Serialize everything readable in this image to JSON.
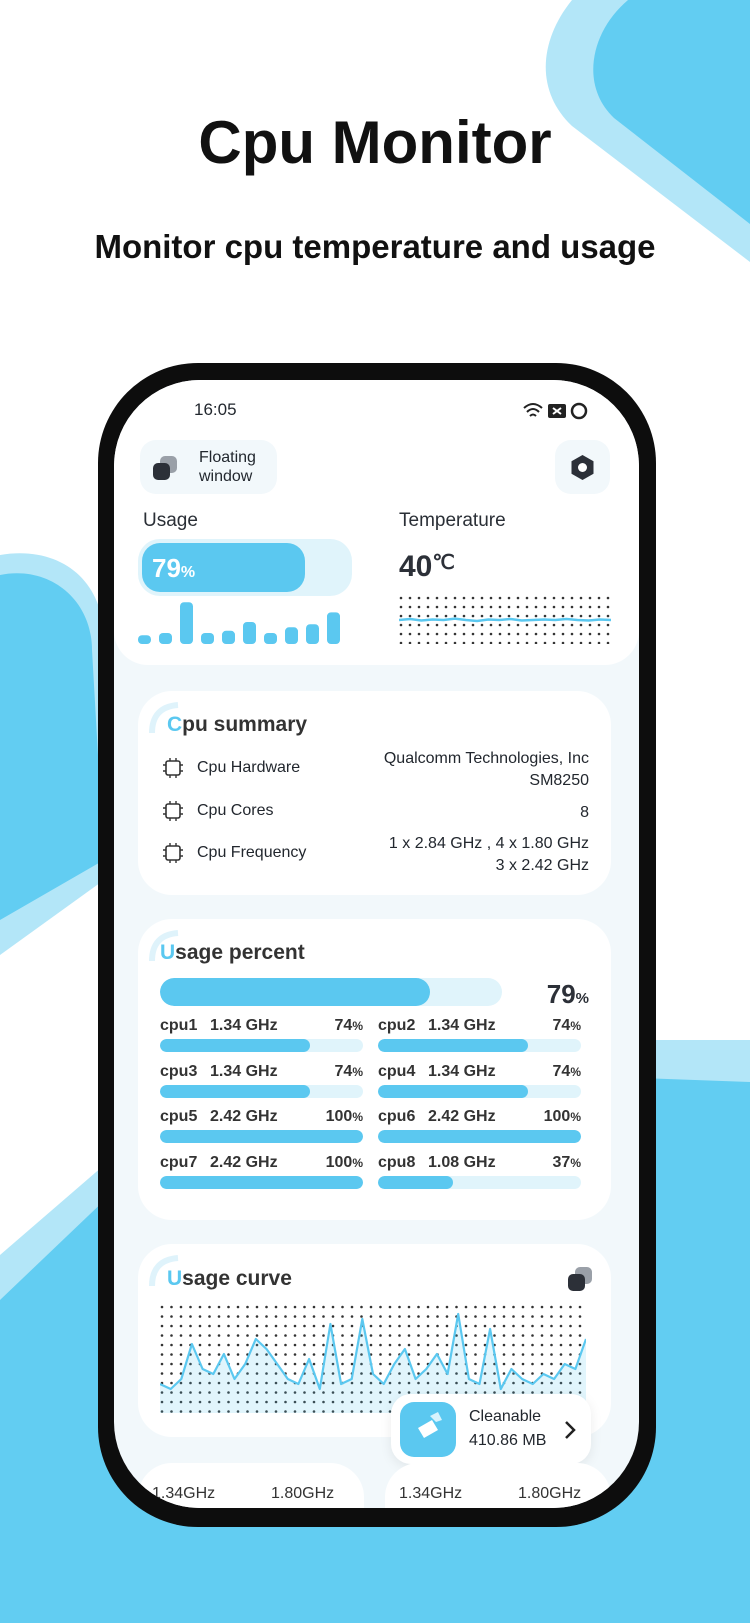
{
  "header": {
    "title": "Cpu Monitor",
    "subtitle": "Monitor cpu temperature and usage"
  },
  "status_bar": {
    "time": "16:05"
  },
  "floating_window": {
    "label": "Floating window"
  },
  "usage": {
    "label": "Usage",
    "value": 79,
    "unit": "%",
    "history": [
      20,
      25,
      95,
      25,
      30,
      50,
      25,
      38,
      45,
      72
    ]
  },
  "temperature": {
    "label": "Temperature",
    "value": 40,
    "unit": "℃",
    "history": [
      50,
      52,
      49,
      51,
      50,
      53,
      50,
      48,
      51,
      50,
      52,
      49,
      50,
      51,
      50,
      52,
      50,
      49,
      51,
      50
    ]
  },
  "cpu_summary": {
    "title": "Cpu summary",
    "rows": [
      {
        "label": "Cpu Hardware",
        "value": [
          "Qualcomm Technologies, Inc",
          "SM8250"
        ]
      },
      {
        "label": "Cpu Cores",
        "value": [
          8
        ]
      },
      {
        "label": "Cpu Frequency",
        "value": [
          "1 x 2.84 GHz , 4 x 1.80 GHz",
          "3 x 2.42 GHz"
        ]
      }
    ]
  },
  "usage_percent": {
    "title": "Usage percent",
    "total": 79,
    "unit": "%",
    "cores": [
      {
        "name": "cpu1",
        "frequency": "1.34 GHz",
        "percent": 74
      },
      {
        "name": "cpu2",
        "frequency": "1.34 GHz",
        "percent": 74
      },
      {
        "name": "cpu3",
        "frequency": "1.34 GHz",
        "percent": 74
      },
      {
        "name": "cpu4",
        "frequency": "1.34 GHz",
        "percent": 74
      },
      {
        "name": "cpu5",
        "frequency": "2.42 GHz",
        "percent": 100
      },
      {
        "name": "cpu6",
        "frequency": "2.42 GHz",
        "percent": 100
      },
      {
        "name": "cpu7",
        "frequency": "2.42 GHz",
        "percent": 100
      },
      {
        "name": "cpu8",
        "frequency": "1.08 GHz",
        "percent": 37
      }
    ]
  },
  "usage_curve": {
    "title": "Usage curve",
    "values": [
      25,
      20,
      30,
      65,
      40,
      35,
      55,
      30,
      45,
      70,
      60,
      45,
      30,
      25,
      50,
      20,
      85,
      25,
      30,
      90,
      35,
      25,
      45,
      60,
      30,
      40,
      55,
      35,
      95,
      30,
      25,
      80,
      20,
      40,
      30,
      25,
      35,
      30,
      45,
      40,
      70
    ]
  },
  "cleanable": {
    "label": "Cleanable",
    "size": "410.86 MB"
  },
  "core_cards": [
    [
      "1.34GHz",
      "1.80GHz"
    ],
    [
      "1.34GHz",
      "1.80GHz"
    ]
  ]
}
